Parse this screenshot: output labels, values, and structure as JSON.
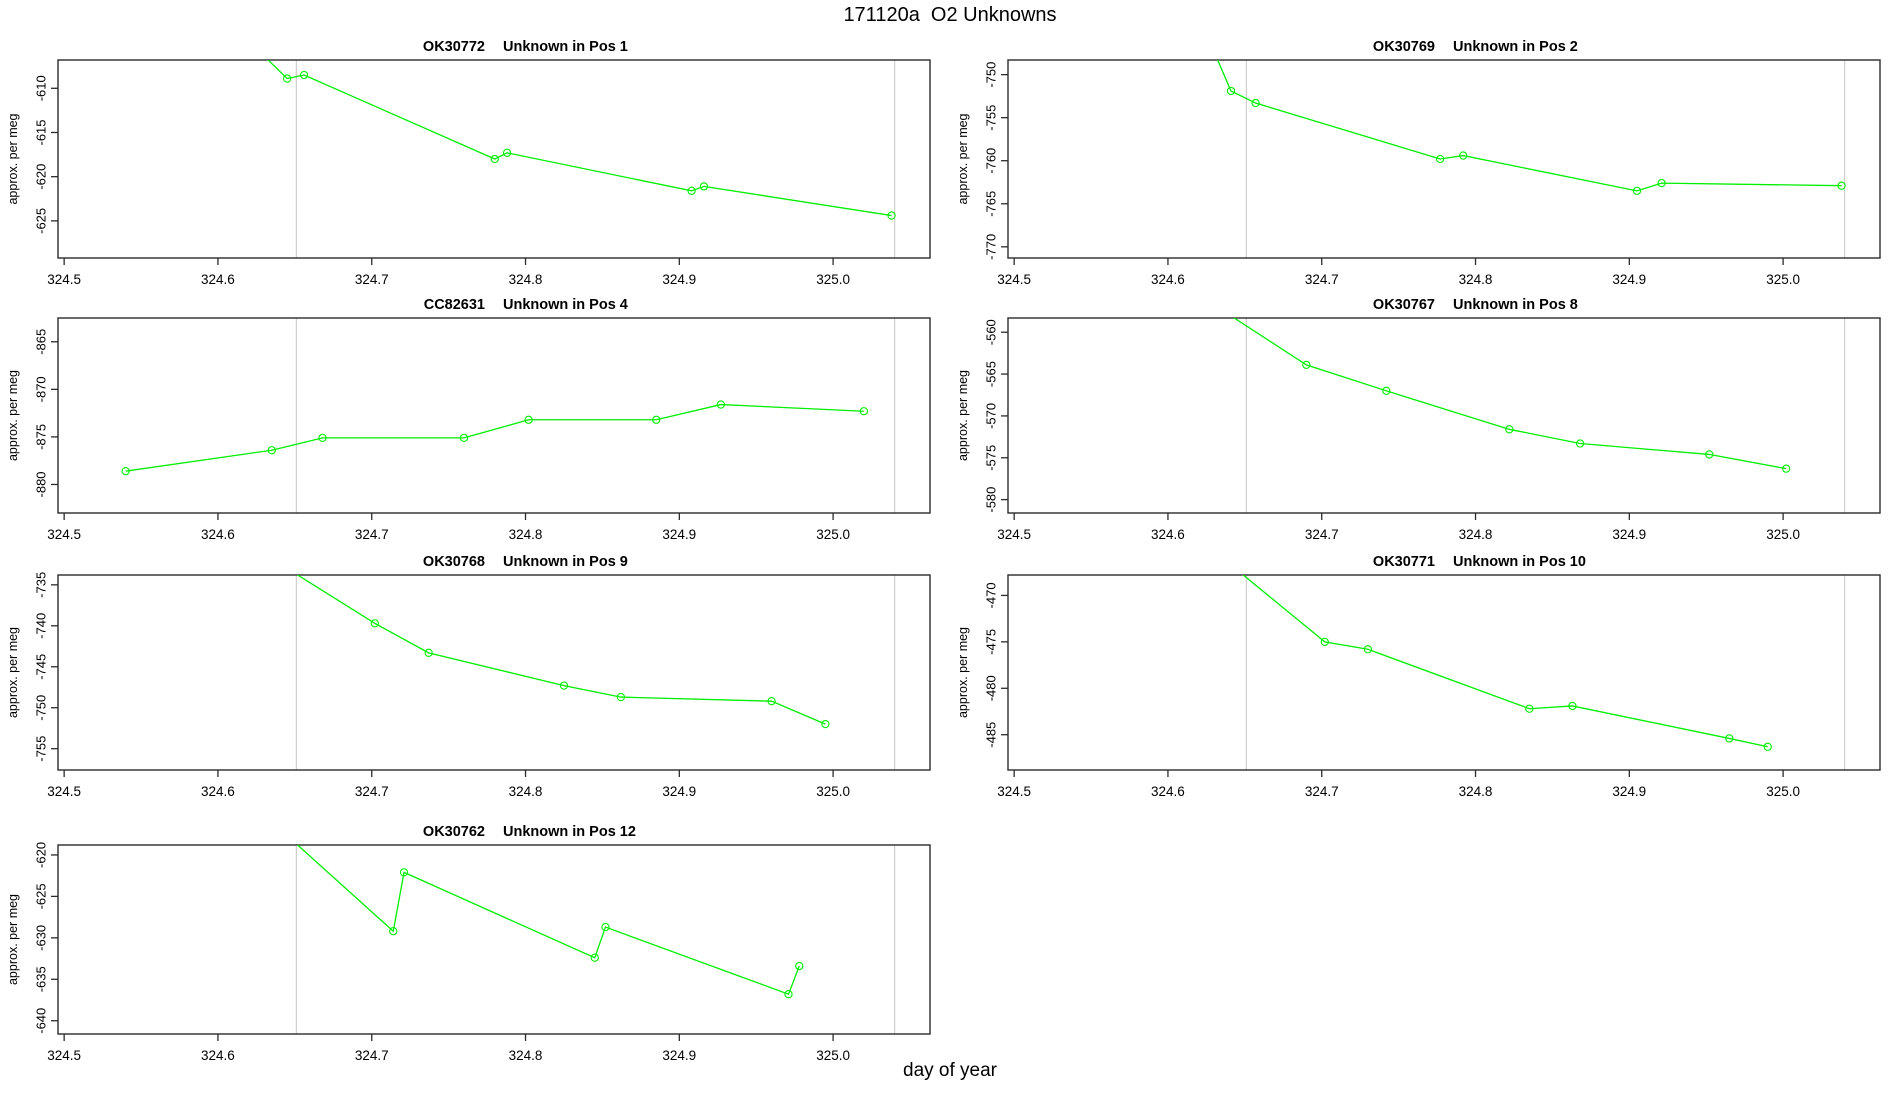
{
  "page": {
    "main_title": "171120a  O2 Unknowns",
    "x_axis_label": "day of year",
    "y_axis_label": "approx. per meg"
  },
  "colors": {
    "series": "#00EE00",
    "reference_line": "#CFCFCF",
    "axis": "#2B2B2B",
    "text": "#000000"
  },
  "axes_common": {
    "xlim": [
      324.496,
      325.063
    ],
    "x_ticks": [
      324.5,
      324.6,
      324.7,
      324.8,
      324.9,
      325.0
    ],
    "reference_vlines": [
      324.651,
      325.04
    ]
  },
  "chart_data": [
    {
      "type": "line",
      "sample_id": "OK30772",
      "position_label": "Unknown in Pos 1",
      "title": "OK30772   Unknown in Pos 1",
      "row": 1,
      "col": 1,
      "ylabel": "approx. per meg",
      "ylim": [
        -629.2,
        -606.8
      ],
      "y_ticks": [
        -610,
        -615,
        -620,
        -625
      ],
      "entry": [
        324.625,
        -605.5
      ],
      "points": [
        [
          324.645,
          -608.9
        ],
        [
          324.656,
          -608.5
        ],
        [
          324.78,
          -618.0
        ],
        [
          324.788,
          -617.3
        ],
        [
          324.908,
          -621.6
        ],
        [
          324.916,
          -621.1
        ],
        [
          325.038,
          -624.4
        ]
      ]
    },
    {
      "type": "line",
      "sample_id": "OK30769",
      "position_label": "Unknown in Pos 2",
      "title": "OK30769   Unknown in Pos 2",
      "row": 1,
      "col": 2,
      "ylabel": "approx. per meg",
      "ylim": [
        -771.3,
        -748.3
      ],
      "y_ticks": [
        -750,
        -755,
        -760,
        -765,
        -770
      ],
      "entry": [
        324.628,
        -746.5
      ],
      "points": [
        [
          324.641,
          -751.9
        ],
        [
          324.657,
          -753.3
        ],
        [
          324.777,
          -759.8
        ],
        [
          324.792,
          -759.4
        ],
        [
          324.905,
          -763.5
        ],
        [
          324.921,
          -762.6
        ],
        [
          325.038,
          -762.9
        ]
      ]
    },
    {
      "type": "line",
      "sample_id": "CC82631",
      "position_label": "Unknown in Pos 4",
      "title": "CC82631   Unknown in Pos 4",
      "row": 2,
      "col": 1,
      "ylabel": "approx. per meg",
      "ylim": [
        -883.0,
        -862.5
      ],
      "y_ticks": [
        -865,
        -870,
        -875,
        -880
      ],
      "entry": null,
      "points": [
        [
          324.54,
          -878.6
        ],
        [
          324.635,
          -876.4
        ],
        [
          324.668,
          -875.1
        ],
        [
          324.76,
          -875.1
        ],
        [
          324.802,
          -873.2
        ],
        [
          324.885,
          -873.2
        ],
        [
          324.927,
          -871.6
        ],
        [
          325.02,
          -872.3
        ]
      ]
    },
    {
      "type": "line",
      "sample_id": "OK30767",
      "position_label": "Unknown in Pos 8",
      "title": "OK30767   Unknown in Pos 8",
      "row": 2,
      "col": 2,
      "ylabel": "approx. per meg",
      "ylim": [
        -581.6,
        -558.3
      ],
      "y_ticks": [
        -560,
        -565,
        -570,
        -575,
        -580
      ],
      "entry": [
        324.628,
        -556.5
      ],
      "points": [
        [
          324.69,
          -563.9
        ],
        [
          324.742,
          -567.0
        ],
        [
          324.822,
          -571.6
        ],
        [
          324.868,
          -573.3
        ],
        [
          324.952,
          -574.6
        ],
        [
          325.002,
          -576.3
        ]
      ]
    },
    {
      "type": "line",
      "sample_id": "OK30768",
      "position_label": "Unknown in Pos 9",
      "title": "OK30768   Unknown in Pos 9",
      "row": 3,
      "col": 1,
      "ylabel": "approx. per meg",
      "ylim": [
        -757.6,
        -733.8
      ],
      "y_ticks": [
        -735,
        -740,
        -745,
        -750,
        -755
      ],
      "entry": [
        324.628,
        -731.0
      ],
      "points": [
        [
          324.702,
          -739.7
        ],
        [
          324.737,
          -743.3
        ],
        [
          324.825,
          -747.3
        ],
        [
          324.862,
          -748.7
        ],
        [
          324.96,
          -749.2
        ],
        [
          324.995,
          -752.0
        ]
      ]
    },
    {
      "type": "line",
      "sample_id": "OK30771",
      "position_label": "Unknown in Pos 10",
      "title": "OK30771   Unknown in Pos 10",
      "row": 3,
      "col": 2,
      "ylabel": "approx. per meg",
      "ylim": [
        -488.8,
        -467.8
      ],
      "y_ticks": [
        -470,
        -475,
        -480,
        -485
      ],
      "entry": [
        324.632,
        -465.5
      ],
      "points": [
        [
          324.702,
          -475.0
        ],
        [
          324.73,
          -475.8
        ],
        [
          324.835,
          -482.2
        ],
        [
          324.863,
          -481.9
        ],
        [
          324.965,
          -485.4
        ],
        [
          324.99,
          -486.3
        ]
      ]
    },
    {
      "type": "line",
      "sample_id": "OK30762",
      "position_label": "Unknown in Pos 12",
      "title": "OK30762   Unknown in Pos 12",
      "row": 4,
      "col": 1,
      "ylabel": "approx. per meg",
      "ylim": [
        -641.6,
        -618.8
      ],
      "y_ticks": [
        -620,
        -625,
        -630,
        -635,
        -640
      ],
      "entry": [
        324.638,
        -616.5
      ],
      "points": [
        [
          324.714,
          -629.2
        ],
        [
          324.721,
          -622.1
        ],
        [
          324.845,
          -632.4
        ],
        [
          324.852,
          -628.7
        ],
        [
          324.971,
          -636.8
        ],
        [
          324.978,
          -633.4
        ]
      ]
    }
  ]
}
